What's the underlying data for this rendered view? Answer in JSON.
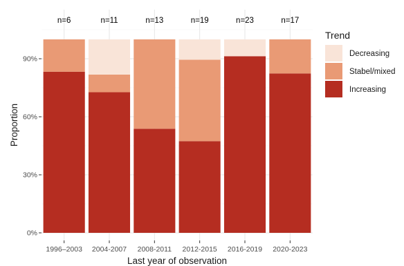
{
  "chart_data": {
    "type": "bar",
    "stacked": true,
    "categories": [
      "1996–2003",
      "2004-2007",
      "2008-2011",
      "2012-2015",
      "2016-2019",
      "2020-2023"
    ],
    "sample_sizes": [
      "n=6",
      "n=11",
      "n=13",
      "n=19",
      "n=23",
      "n=17"
    ],
    "series": [
      {
        "name": "Increasing",
        "color": "#b52d21",
        "values": [
          0.833,
          0.727,
          0.538,
          0.474,
          0.913,
          0.824
        ]
      },
      {
        "name": "Stabel/mixed",
        "color": "#e99a75",
        "values": [
          0.167,
          0.091,
          0.462,
          0.421,
          0.0,
          0.176
        ]
      },
      {
        "name": "Decreasing",
        "color": "#f9e4d8",
        "values": [
          0.0,
          0.182,
          0.0,
          0.105,
          0.087,
          0.0
        ]
      }
    ],
    "legend": {
      "title": "Trend",
      "order": [
        "Decreasing",
        "Stabel/mixed",
        "Increasing"
      ],
      "position": "right"
    },
    "xlabel": "Last year of observation",
    "ylabel": "Proportion",
    "yticks": [
      0,
      0.3,
      0.6,
      0.9
    ],
    "ytick_labels": [
      "0%",
      "30%",
      "60%",
      "90%"
    ],
    "ylim": [
      0,
      1.15
    ],
    "grid": true
  }
}
